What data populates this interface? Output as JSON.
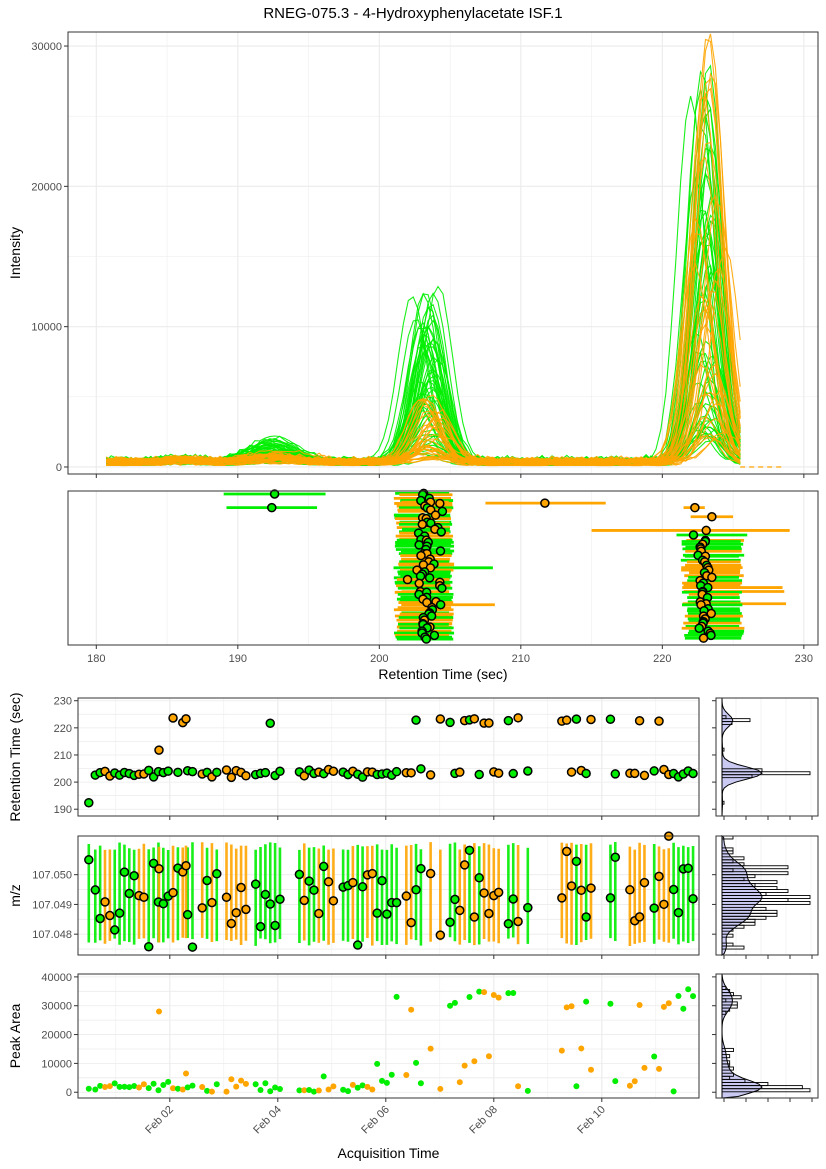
{
  "title": "RNEG-075.3 - 4-Hydroxyphenylacetate ISF.1",
  "colors": {
    "green": "#00EE00",
    "orange": "#FFA500",
    "density_fill": "#C9C9F2",
    "grid": "#EBEBEB",
    "panel_border": "#333333"
  },
  "chart_data": [
    {
      "id": "eic",
      "type": "line",
      "title": "RNEG-075.3 - 4-Hydroxyphenylacetate ISF.1",
      "ylabel": "Intensity",
      "xlim": [
        178,
        231
      ],
      "ylim": [
        -500,
        31000
      ],
      "xticks": [
        180,
        190,
        200,
        210,
        220,
        230
      ],
      "yticks": [
        0,
        10000,
        20000,
        30000
      ],
      "ytick_labels": [
        "0",
        "10000",
        "20000",
        "30000"
      ],
      "grid": true,
      "series": [
        {
          "color": "green",
          "peaks": [
            [
              192.5,
              1800,
              1.0
            ],
            [
              203.4,
              12800,
              0.45
            ],
            [
              223.1,
              28500,
              0.42
            ]
          ],
          "min_scale": 0.05,
          "shift": 1.0
        },
        {
          "color": "orange",
          "peaks": [
            [
              192.5,
              700,
              1.0
            ],
            [
              203.6,
              4800,
              0.5
            ],
            [
              223.2,
              30800,
              0.45
            ]
          ],
          "min_scale": 0.05,
          "shift": 1.4
        }
      ]
    },
    {
      "id": "peak-rt-ranges",
      "type": "scatter",
      "xlabel": "Retention Time (sec)",
      "xlim": [
        178,
        231
      ],
      "xticks": [
        180,
        190,
        200,
        210,
        220,
        230
      ],
      "tick_labels": [
        "180",
        "190",
        "200",
        "210",
        "220",
        "230"
      ],
      "points": [
        {
          "rt": 192.6,
          "min": 189.0,
          "max": 196.2,
          "color": "green"
        },
        {
          "rt": 192.4,
          "min": 189.2,
          "max": 195.6,
          "color": "green"
        },
        {
          "rt": 211.7,
          "min": 207.5,
          "max": 216.0,
          "color": "orange"
        },
        {
          "rt": 222.3,
          "min": 221.5,
          "max": 223.0,
          "color": "orange"
        },
        {
          "rt": 223.5,
          "min": 222.0,
          "max": 225.0,
          "color": "orange"
        },
        {
          "rt": 223.1,
          "min": 215.0,
          "max": 229.0,
          "color": "orange"
        },
        {
          "rt": 222.2,
          "min": 221.0,
          "max": 226.0,
          "color": "green"
        }
      ],
      "clusters": [
        {
          "n": 70,
          "center": 203.4,
          "spread": 1.4,
          "min": 201.0,
          "max": 205.3
        },
        {
          "n": 40,
          "center": 223.0,
          "spread": 0.6,
          "min": 221.3,
          "max": 225.8
        }
      ]
    },
    {
      "id": "rt-vs-time",
      "type": "scatter",
      "ylabel": "Retention Time (sec)",
      "ylim": [
        187.5,
        231
      ],
      "yticks": [
        190,
        200,
        210,
        220,
        230
      ],
      "ytick_labels": [
        "190",
        "200",
        "210",
        "220",
        "230"
      ],
      "grid": true
    },
    {
      "id": "mz-vs-time",
      "type": "scatter",
      "ylabel": "m/z",
      "ylim": [
        107.0473,
        107.0513
      ],
      "yticks": [
        107.048,
        107.049,
        107.05
      ],
      "ytick_labels": [
        "107.048",
        "107.049",
        "107.050"
      ],
      "grid": true
    },
    {
      "id": "area-vs-time",
      "type": "scatter",
      "ylabel": "Peak Area",
      "xlabel": "Acquisition Time",
      "ylim": [
        -2000,
        41000
      ],
      "yticks": [
        0,
        10000,
        20000,
        30000,
        40000
      ],
      "ytick_labels": [
        "0",
        "10000",
        "20000",
        "30000",
        "40000"
      ],
      "xlim_days": [
        0.3,
        11.8
      ],
      "xticks_days": [
        2,
        4,
        6,
        8,
        10
      ],
      "xtick_labels": [
        "Feb 02",
        "Feb 04",
        "Feb 06",
        "Feb 08",
        "Feb 10"
      ],
      "grid": true
    },
    {
      "id": "marginal-densities",
      "type": "area",
      "panels": [
        "rt",
        "mz",
        "area"
      ]
    }
  ]
}
